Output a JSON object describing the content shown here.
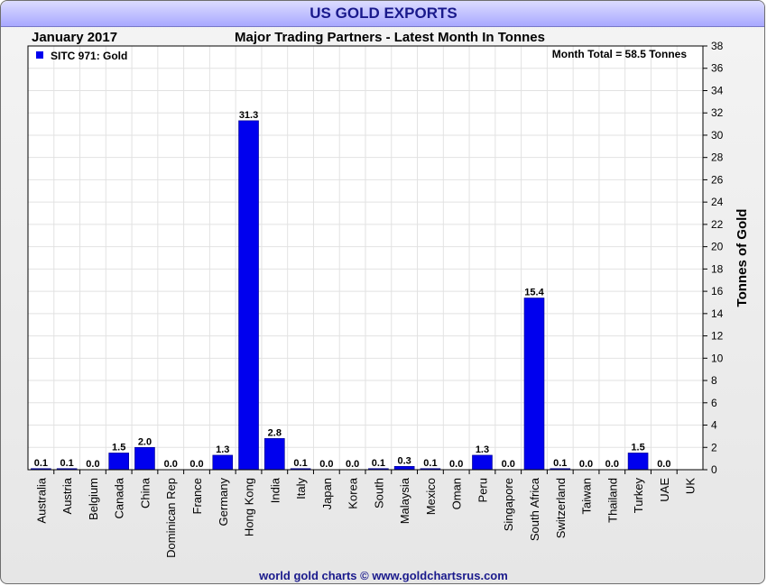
{
  "chart_data": {
    "type": "bar",
    "title": "US GOLD EXPORTS",
    "period": "January 2017",
    "subtitle": "Major Trading Partners - Latest Month In Tonnes",
    "legend": "SITC 971: Gold",
    "legend_position": "top-left",
    "annotation": "Month Total = 58.5 Tonnes",
    "ylabel": "Tonnes of Gold",
    "y_axis_side": "right",
    "ylim": [
      0,
      38
    ],
    "ytick_step": 2,
    "grid": true,
    "bar_color": "#0000ee",
    "categories": [
      "Australia",
      "Austria",
      "Belgium",
      "Canada",
      "China",
      "Dominican Rep",
      "France",
      "Germany",
      "Hong Kong",
      "India",
      "Italy",
      "Japan",
      "Korea",
      "South",
      "Malaysia",
      "Mexico",
      "Oman",
      "Peru",
      "Singapore",
      "South Africa",
      "Switzerland",
      "Taiwan",
      "Thailand",
      "Turkey",
      "UAE",
      "UK"
    ],
    "values": [
      0.1,
      0.1,
      0.0,
      1.5,
      2.0,
      0.0,
      0.0,
      1.3,
      31.3,
      2.8,
      0.1,
      0.0,
      0.0,
      0.1,
      0.3,
      0.1,
      0.0,
      1.3,
      0.0,
      15.4,
      0.1,
      0.0,
      0.0,
      1.5,
      0.0,
      null
    ],
    "data_labels": [
      "0.1",
      "0.1",
      "0.0",
      "1.5",
      "2.0",
      "0.0",
      "0.0",
      "1.3",
      "31.3",
      "2.8",
      "0.1",
      "0.0",
      "0.0",
      "0.1",
      "0.3",
      "0.1",
      "0.0",
      "1.3",
      "0.0",
      "15.4",
      "0.1",
      "0.0",
      "0.0",
      "1.5",
      "0.0",
      ""
    ],
    "footer": "world gold charts © www.goldchartsrus.com"
  }
}
